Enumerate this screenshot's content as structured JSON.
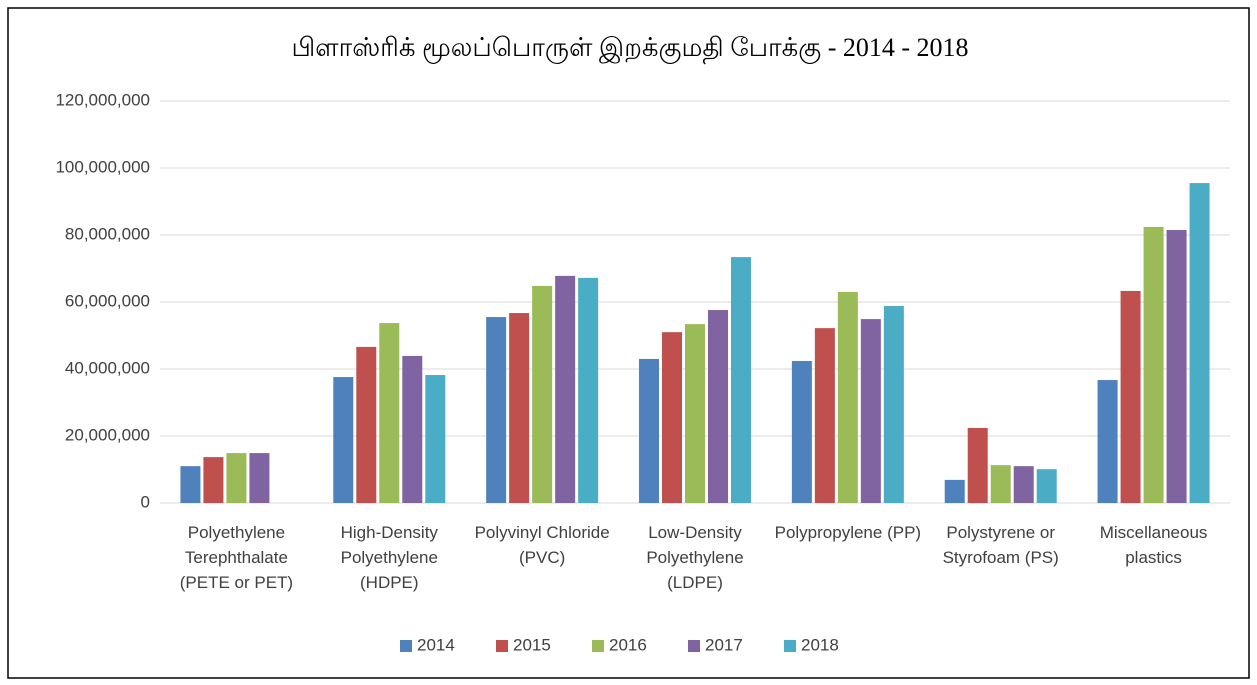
{
  "chart_data": {
    "type": "bar",
    "title": "பிளாஸ்ரிக் மூலப்பொருள் இறக்குமதி போக்கு - 2014 - 2018",
    "categories": [
      "Polyethylene Terephthalate (PETE or PET)",
      "High-Density Polyethylene (HDPE)",
      "Polyvinyl Chloride (PVC)",
      "Low-Density Polyethylene (LDPE)",
      "Polypropylene (PP)",
      "Polystyrene or Styrofoam (PS)",
      "Miscellaneous plastics"
    ],
    "series": [
      {
        "name": "2014",
        "color": "#4f81bd",
        "values": [
          11000000,
          37600000,
          55500000,
          43000000,
          42400000,
          6900000,
          36700000
        ]
      },
      {
        "name": "2015",
        "color": "#c0504d",
        "values": [
          13700000,
          46600000,
          56700000,
          51000000,
          52200000,
          22400000,
          63300000
        ]
      },
      {
        "name": "2016",
        "color": "#9bbb59",
        "values": [
          14900000,
          53700000,
          64800000,
          53400000,
          63000000,
          11300000,
          82400000
        ]
      },
      {
        "name": "2017",
        "color": "#8064a2",
        "values": [
          14900000,
          43900000,
          67800000,
          57600000,
          54900000,
          11000000,
          81500000
        ]
      },
      {
        "name": "2018",
        "color": "#4bacc6",
        "values": [
          null,
          38200000,
          67200000,
          73400000,
          58800000,
          10100000,
          95500000
        ]
      }
    ],
    "ylim": [
      0,
      120000000
    ],
    "yticks": [
      0,
      {
        "value": 20000000,
        "label": "20,000,000"
      },
      {
        "value": 40000000,
        "label": "40,000,000"
      },
      {
        "value": 60000000,
        "label": "60,000,000"
      },
      {
        "value": 80000000,
        "label": "80,000,000"
      },
      {
        "value": 100000000,
        "label": "100,000,000"
      },
      {
        "value": 120000000,
        "label": "120,000,000"
      }
    ],
    "grid": true,
    "legend": "bottom"
  }
}
